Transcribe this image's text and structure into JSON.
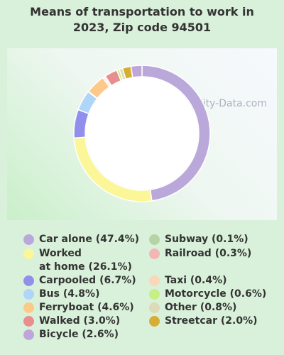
{
  "chart_data": {
    "type": "pie",
    "title": "Means of transportation to work in 2023, Zip code 94501",
    "title_lines": [
      "Means of transportation to work in",
      "2023, Zip code 94501"
    ],
    "watermark": "City-Data.com",
    "categories": [
      "Car alone",
      "Worked at home",
      "Carpooled",
      "Bus",
      "Ferryboat",
      "Walked",
      "Bicycle",
      "Subway",
      "Railroad",
      "Taxi",
      "Motorcycle",
      "Other",
      "Streetcar"
    ],
    "values": [
      47.4,
      26.1,
      6.7,
      4.8,
      4.6,
      3.0,
      2.6,
      0.1,
      0.3,
      0.4,
      0.6,
      0.8,
      2.0
    ],
    "legend_labels": [
      "Car alone (47.4%)",
      "Worked\nat home (26.1%)",
      "Carpooled (6.7%)",
      "Bus (4.8%)",
      "Ferryboat (4.6%)",
      "Walked (3.0%)",
      "Bicycle (2.6%)",
      "Subway (0.1%)",
      "Railroad (0.3%)",
      "Taxi (0.4%)",
      "Motorcycle (0.6%)",
      "Other (0.8%)",
      "Streetcar (2.0%)"
    ],
    "colors": [
      "#bba8da",
      "#fbf698",
      "#9090ec",
      "#afd5f8",
      "#fcc989",
      "#e88e8e",
      "#bfa6da",
      "#b6d3a6",
      "#f2b6b4",
      "#f9d7b8",
      "#c8ef84",
      "#dcdab7",
      "#d6ae37"
    ],
    "slice_order": [
      0,
      1,
      2,
      3,
      7,
      4,
      9,
      8,
      5,
      10,
      11,
      12,
      6
    ],
    "donut": true
  }
}
